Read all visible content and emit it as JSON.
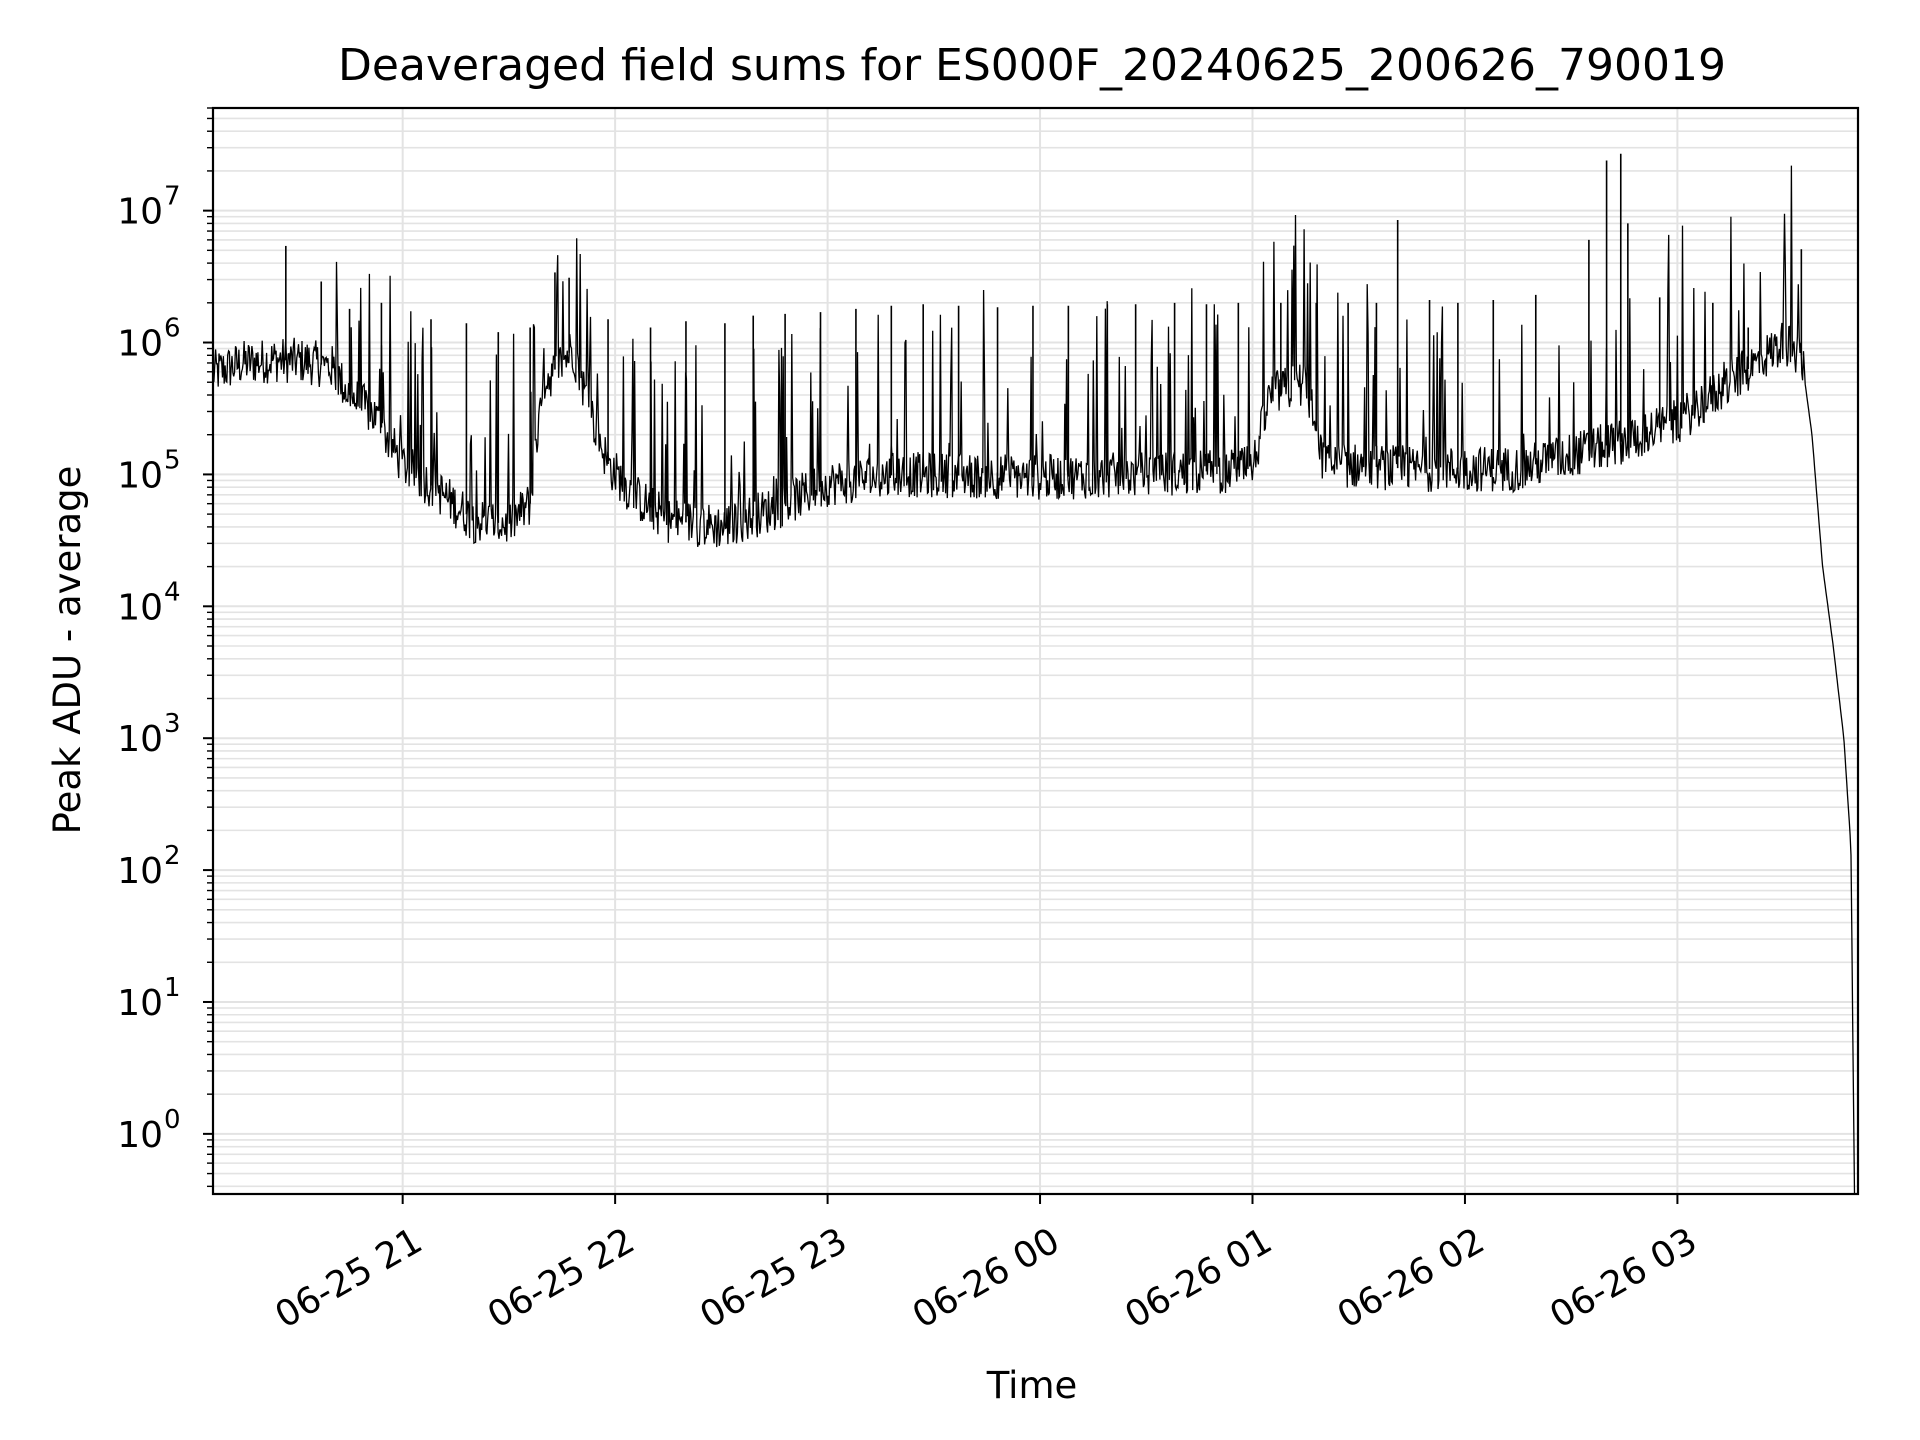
{
  "chart_data": {
    "type": "line",
    "title": "Deaveraged field sums for ES000F_20240625_200626_790019",
    "xlabel": "Time",
    "ylabel": "Peak ADU - average",
    "yscale": "log",
    "ylim": [
      0.35,
      60000000
    ],
    "xlim": [
      "2024-06-25 20:06:26",
      "2024-06-26 03:51:00"
    ],
    "grid": true,
    "legend": "none",
    "colors": {
      "line": "#000000",
      "grid": "#e3e3e3",
      "axes": "#000000"
    },
    "x_tick_labels": [
      "06-25 21",
      "06-25 22",
      "06-25 23",
      "06-26 00",
      "06-26 01",
      "06-26 02",
      "06-26 03"
    ],
    "x_ticks": [
      "2024-06-25 21:00",
      "2024-06-25 22:00",
      "2024-06-25 23:00",
      "2024-06-26 00:00",
      "2024-06-26 01:00",
      "2024-06-26 02:00",
      "2024-06-26 03:00"
    ],
    "y_ticks": [
      {
        "value": 1,
        "base": "10",
        "exp": "0"
      },
      {
        "value": 10,
        "base": "10",
        "exp": "1"
      },
      {
        "value": 100,
        "base": "10",
        "exp": "2"
      },
      {
        "value": 1000,
        "base": "10",
        "exp": "3"
      },
      {
        "value": 10000,
        "base": "10",
        "exp": "4"
      },
      {
        "value": 100000,
        "base": "10",
        "exp": "5"
      },
      {
        "value": 1000000,
        "base": "10",
        "exp": "6"
      },
      {
        "value": 10000000,
        "base": "10",
        "exp": "7"
      }
    ],
    "series": [
      {
        "baseline": [
          [
            "2024-06-25 20:06",
            580000
          ],
          [
            "2024-06-25 20:15",
            700000
          ],
          [
            "2024-06-25 20:24",
            740000
          ],
          [
            "2024-06-25 20:33",
            720000
          ],
          [
            "2024-06-25 20:40",
            650000
          ],
          [
            "2024-06-25 20:45",
            400000
          ],
          [
            "2024-06-25 20:52",
            280000
          ],
          [
            "2024-06-25 21:00",
            120000
          ],
          [
            "2024-06-25 21:10",
            75000
          ],
          [
            "2024-06-25 21:20",
            45000
          ],
          [
            "2024-06-25 21:30",
            42000
          ],
          [
            "2024-06-25 21:36",
            60000
          ],
          [
            "2024-06-25 21:40",
            500000
          ],
          [
            "2024-06-25 21:48",
            900000
          ],
          [
            "2024-06-25 21:53",
            300000
          ],
          [
            "2024-06-25 21:58",
            120000
          ],
          [
            "2024-06-25 22:05",
            70000
          ],
          [
            "2024-06-25 22:15",
            45000
          ],
          [
            "2024-06-25 22:30",
            40000
          ],
          [
            "2024-06-25 22:45",
            55000
          ],
          [
            "2024-06-25 23:00",
            85000
          ],
          [
            "2024-06-25 23:20",
            100000
          ],
          [
            "2024-06-26 00:00",
            95000
          ],
          [
            "2024-06-26 00:30",
            100000
          ],
          [
            "2024-06-26 01:00",
            110000
          ],
          [
            "2024-06-26 01:05",
            400000
          ],
          [
            "2024-06-26 01:15",
            500000
          ],
          [
            "2024-06-26 01:20",
            120000
          ],
          [
            "2024-06-26 01:45",
            110000
          ],
          [
            "2024-06-26 02:15",
            110000
          ],
          [
            "2024-06-26 02:30",
            140000
          ],
          [
            "2024-06-26 02:45",
            180000
          ],
          [
            "2024-06-26 03:00",
            250000
          ],
          [
            "2024-06-26 03:15",
            500000
          ],
          [
            "2024-06-26 03:30",
            1000000
          ],
          [
            "2024-06-26 03:35",
            800000
          ],
          [
            "2024-06-26 03:38",
            200000
          ],
          [
            "2024-06-26 03:41",
            20000
          ],
          [
            "2024-06-26 03:44",
            5000
          ],
          [
            "2024-06-26 03:47",
            1000
          ],
          [
            "2024-06-26 03:49",
            150
          ],
          [
            "2024-06-26 03:50",
            0.35
          ]
        ],
        "spikes": [
          [
            "2024-06-25 20:27",
            5400000
          ],
          [
            "2024-06-25 20:37",
            2900000
          ],
          [
            "2024-06-25 20:45",
            1800000
          ],
          [
            "2024-06-25 20:54",
            2000000
          ],
          [
            "2024-06-25 21:08",
            1500000
          ],
          [
            "2024-06-25 21:18",
            1400000
          ],
          [
            "2024-06-25 21:27",
            1200000
          ],
          [
            "2024-06-25 21:36",
            1300000
          ],
          [
            "2024-06-25 21:43",
            3400000
          ],
          [
            "2024-06-25 21:47",
            3100000
          ],
          [
            "2024-06-25 21:58",
            1500000
          ],
          [
            "2024-06-25 22:10",
            1300000
          ],
          [
            "2024-06-25 22:20",
            1450000
          ],
          [
            "2024-06-25 22:31",
            1400000
          ],
          [
            "2024-06-25 22:39",
            1600000
          ],
          [
            "2024-06-25 22:48",
            1650000
          ],
          [
            "2024-06-25 22:58",
            1700000
          ],
          [
            "2024-06-25 23:08",
            1800000
          ],
          [
            "2024-06-25 23:18",
            1900000
          ],
          [
            "2024-06-25 23:27",
            1950000
          ],
          [
            "2024-06-25 23:37",
            1900000
          ],
          [
            "2024-06-25 23:48",
            1850000
          ],
          [
            "2024-06-25 23:58",
            1900000
          ],
          [
            "2024-06-26 00:08",
            1900000
          ],
          [
            "2024-06-26 00:19",
            1950000
          ],
          [
            "2024-06-26 00:27",
            1950000
          ],
          [
            "2024-06-26 00:38",
            2000000
          ],
          [
            "2024-06-26 00:47",
            1950000
          ],
          [
            "2024-06-26 00:56",
            2000000
          ],
          [
            "2024-06-26 01:08",
            2000000
          ],
          [
            "2024-06-26 01:18",
            2000000
          ],
          [
            "2024-06-26 01:27",
            2000000
          ],
          [
            "2024-06-26 01:35",
            2000000
          ],
          [
            "2024-06-26 01:41",
            8500000
          ],
          [
            "2024-06-26 01:50",
            2100000
          ],
          [
            "2024-06-26 01:58",
            2000000
          ],
          [
            "2024-06-26 02:08",
            2100000
          ],
          [
            "2024-06-26 02:20",
            2300000
          ],
          [
            "2024-06-26 02:35",
            6000000
          ],
          [
            "2024-06-26 02:40",
            24000000
          ],
          [
            "2024-06-26 02:44",
            27000000
          ],
          [
            "2024-06-26 02:46",
            8000000
          ],
          [
            "2024-06-26 02:55",
            2200000
          ],
          [
            "2024-06-26 03:10",
            2000000
          ],
          [
            "2024-06-26 03:20",
            1300000
          ],
          [
            "2024-06-26 03:35",
            5100000
          ]
        ]
      }
    ]
  }
}
